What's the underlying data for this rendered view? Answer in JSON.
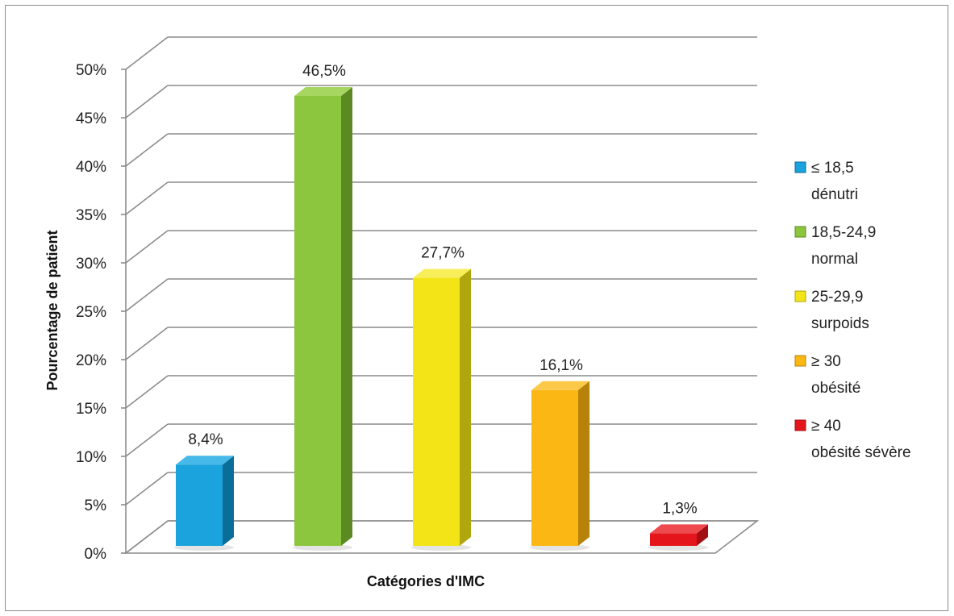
{
  "chart_data": {
    "type": "bar",
    "title": "",
    "xlabel": "Catégories d'IMC",
    "ylabel": "Pourcentage de patient",
    "ylim": [
      0,
      50
    ],
    "yticks": [
      "0%",
      "5%",
      "10%",
      "15%",
      "20%",
      "25%",
      "30%",
      "35%",
      "40%",
      "45%",
      "50%"
    ],
    "grid": true,
    "three_d": true,
    "legend_position": "right",
    "categories": [
      "≤ 18,5 dénutri",
      "18,5-24,9 normal",
      "25-29,9 surpoids",
      "≥ 30 obésité",
      "≥ 40 obésité sévère"
    ],
    "values": [
      8.4,
      46.5,
      27.7,
      16.1,
      1.3
    ],
    "data_labels": [
      "8,4%",
      "46,5%",
      "27,7%",
      "16,1%",
      "1,3%"
    ],
    "colors": [
      "#1aa3dc",
      "#8cc63f",
      "#f2e416",
      "#fbb714",
      "#e4161b"
    ],
    "side_colors": [
      "#0a6e99",
      "#5b8a22",
      "#b0a60e",
      "#b68209",
      "#a50e12"
    ],
    "top_colors": [
      "#46b9e8",
      "#a6d660",
      "#f7ee5a",
      "#fcc847",
      "#ee4a4e"
    ],
    "legend": [
      {
        "line1": "≤ 18,5",
        "line2": "dénutri"
      },
      {
        "line1": "18,5-24,9",
        "line2": "normal"
      },
      {
        "line1": "25-29,9",
        "line2": "surpoids"
      },
      {
        "line1": "≥ 30",
        "line2": "obésité"
      },
      {
        "line1": "≥ 40",
        "line2": "obésité sévère"
      }
    ]
  }
}
